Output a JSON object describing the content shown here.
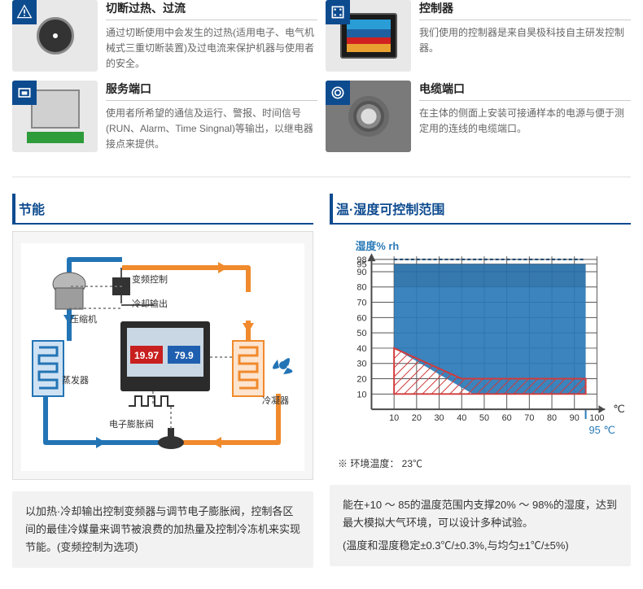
{
  "features": [
    {
      "title": "切断过热、过流",
      "desc": "通过切断使用中会发生的过热(适用电子、电气机械式三重切断装置)及过电流来保护机器与使用者的安全。"
    },
    {
      "title": "控制器",
      "desc": "我们使用的控制器是来自昊极科技自主研发控制器。"
    },
    {
      "title": "服务端口",
      "desc": "使用者所希望的通信及运行、警报、时间信号(RUN、Alarm、Time Singnal)等输出，以继电器接点来提供。"
    },
    {
      "title": "电缆端口",
      "desc": "在主体的侧面上安装可接通样本的电源与便于测定用的连线的电缆端口。"
    }
  ],
  "left": {
    "header": "节能",
    "labels": {
      "inverter": "变频控制",
      "coolout": "冷却输出",
      "compressor": "压缩机",
      "evaporator": "蒸发器",
      "condenser": "冷凝器",
      "eev": "电子膨胀阀"
    },
    "screen": {
      "v1": "19.97",
      "v2": "79.9"
    },
    "footer": "以加热·冷却输出控制变频器与调节电子膨胀阀，控制各区间的最佳冷媒量来调节被浪费的加热量及控制冷冻机来实现节能。(变频控制为选项)"
  },
  "right": {
    "header": "温·湿度可控制范围",
    "ylabel": "湿度% rh",
    "xlabel": "℃",
    "hot": "95 ℃",
    "caption": "※ 环境温度： 23℃",
    "footer": "能在+10 ～ 85的温度范围内支撑20% ～ 98%的湿度，达到最大模拟大气环境，可以设计多种试验。",
    "footer2": "(温度和湿度稳定±0.3℃/±0.3%,与均匀±1℃/±5%)",
    "ylim": [
      0,
      100
    ],
    "yticks": [
      10,
      20,
      30,
      40,
      50,
      60,
      70,
      80,
      90,
      95,
      98
    ],
    "xticks": [
      10,
      20,
      30,
      40,
      50,
      60,
      70,
      80,
      90,
      100
    ],
    "blue_area": [
      [
        10,
        95
      ],
      [
        95,
        95
      ],
      [
        95,
        10
      ],
      [
        45,
        10
      ],
      [
        10,
        40
      ]
    ],
    "red_band": [
      [
        10,
        10
      ],
      [
        95,
        10
      ],
      [
        95,
        20
      ],
      [
        40,
        20
      ],
      [
        10,
        40
      ]
    ],
    "colors": {
      "area": "#2a7ab7",
      "band": "#d13a3a",
      "axis": "#4a4a4a",
      "grid": "#4a4a4a"
    }
  }
}
